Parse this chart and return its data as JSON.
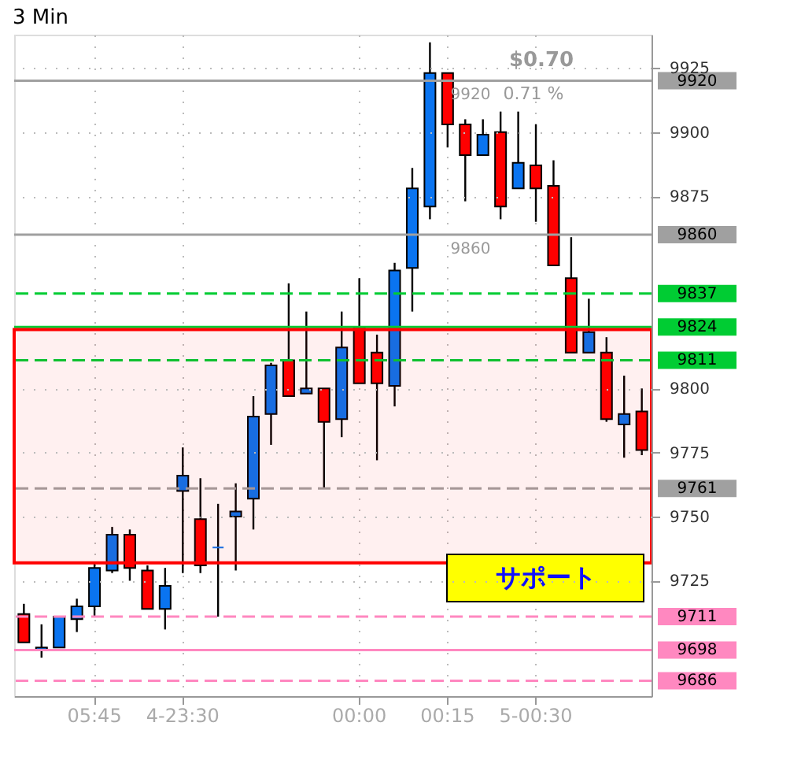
{
  "chart_data": {
    "type": "candlestick",
    "title": "3 Min",
    "categories": [
      null,
      null,
      null,
      null,
      "05:45",
      null,
      null,
      null,
      null,
      "4-23:30",
      null,
      null,
      null,
      null,
      null,
      null,
      null,
      null,
      null,
      "00:00",
      null,
      null,
      null,
      null,
      "00:15",
      null,
      null,
      null,
      null,
      "5-00:30",
      null,
      null,
      null,
      null,
      null,
      null
    ],
    "ohlc": [
      [
        9712,
        9716,
        9701,
        9701
      ],
      [
        9698,
        9708,
        9695,
        9699
      ],
      [
        9699,
        9711,
        9699,
        9711
      ],
      [
        9710,
        9718,
        9705,
        9715
      ],
      [
        9715,
        9732,
        9711,
        9730
      ],
      [
        9729,
        9746,
        9728,
        9743
      ],
      [
        9743,
        9745,
        9725,
        9730
      ],
      [
        9729,
        9731,
        9714,
        9714
      ],
      [
        9714,
        9730,
        9706,
        9723
      ],
      [
        9760,
        9777,
        9728,
        9766
      ],
      [
        9749,
        9765,
        9728,
        9731
      ],
      [
        9738,
        9755,
        9711,
        9738
      ],
      [
        9750,
        9763,
        9729,
        9752
      ],
      [
        9757,
        9797,
        9745,
        9789
      ],
      [
        9790,
        9810,
        9778,
        9809
      ],
      [
        9811,
        9841,
        9797,
        9797
      ],
      [
        9798,
        9830,
        9798,
        9800
      ],
      [
        9800,
        9800,
        9761,
        9787
      ],
      [
        9788,
        9830,
        9781,
        9816
      ],
      [
        9824,
        9843,
        9802,
        9802
      ],
      [
        9814,
        9821,
        9772,
        9802
      ],
      [
        9801,
        9849,
        9793,
        9846
      ],
      [
        9847,
        9886,
        9830,
        9878
      ],
      [
        9871,
        9935,
        9866,
        9923
      ],
      [
        9923,
        9923,
        9894,
        9903
      ],
      [
        9903,
        9905,
        9873,
        9891
      ],
      [
        9891,
        9905,
        9891,
        9899
      ],
      [
        9900,
        9908,
        9866,
        9871
      ],
      [
        9878,
        9908,
        9878,
        9888
      ],
      [
        9887,
        9903,
        9865,
        9878
      ],
      [
        9879,
        9889,
        9848,
        9848
      ],
      [
        9843,
        9859,
        9814,
        9814
      ],
      [
        9814,
        9835,
        9814,
        9822
      ],
      [
        9814,
        9820,
        9787,
        9788
      ],
      [
        9786,
        9805,
        9773,
        9790
      ],
      [
        9791,
        9800,
        9774,
        9776
      ]
    ],
    "colors": [
      "#ff0000",
      "#0a74f0",
      "#0a74f0",
      "#0a74f0",
      "#0a74f0",
      "#0a74f0",
      "#ff0000",
      "#ff0000",
      "#0a74f0",
      "#0a74f0",
      "#ff0000",
      "#0a74f0",
      "#0a74f0",
      "#0a74f0",
      "#0a74f0",
      "#ff0000",
      "#0a74f0",
      "#ff0000",
      "#0a74f0",
      "#ff0000",
      "#ff0000",
      "#0a74f0",
      "#0a74f0",
      "#0a74f0",
      "#ff0000",
      "#ff0000",
      "#0a74f0",
      "#ff0000",
      "#0a74f0",
      "#ff0000",
      "#ff0000",
      "#ff0000",
      "#0a74f0",
      "#ff0000",
      "#0a74f0",
      "#ff0000"
    ],
    "ylim": [
      9680,
      9938
    ],
    "yticks": [
      9725,
      9750,
      9775,
      9800,
      9875,
      9900,
      9925
    ],
    "grid": true,
    "ref_lines": [
      {
        "axis": "y",
        "value": 9920,
        "label": "9920",
        "color": "#a0a0a0",
        "line_style": "solid"
      },
      {
        "axis": "y",
        "value": 9860,
        "label": "9860",
        "color": "#a0a0a0",
        "line_style": "solid"
      },
      {
        "axis": "y",
        "value": 9837,
        "label": "9837",
        "color": "#00cc33",
        "line_style": "dashed"
      },
      {
        "axis": "y",
        "value": 9824,
        "label": "9824",
        "color": "#00cc33",
        "line_style": "solid"
      },
      {
        "axis": "y",
        "value": 9811,
        "label": "9811",
        "color": "#00cc33",
        "line_style": "dashed"
      },
      {
        "axis": "y",
        "value": 9761,
        "label": "9761",
        "color": "#a0a0a0",
        "line_style": "dashed"
      },
      {
        "axis": "y",
        "value": 9711,
        "label": "9711",
        "color": "#ff88c0",
        "line_style": "dashed"
      },
      {
        "axis": "y",
        "value": 9698,
        "label": "9698",
        "color": "#ff88c0",
        "line_style": "solid"
      },
      {
        "axis": "y",
        "value": 9686,
        "label": "9686",
        "color": "#ff88c0",
        "line_style": "dashed"
      }
    ],
    "bands": [
      {
        "axis": "y",
        "from": 9732,
        "to": 9823,
        "label": "サポート",
        "color": "#ff0000"
      }
    ],
    "annotations": [
      "$0.70",
      "9920",
      "0.71 %",
      "9860"
    ]
  }
}
